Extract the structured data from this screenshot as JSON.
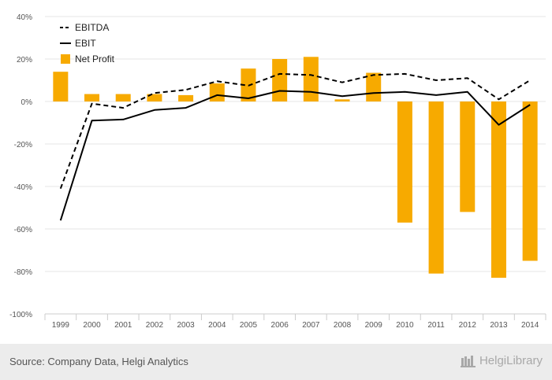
{
  "chart_data": {
    "type": "bar",
    "categories": [
      "1999",
      "2000",
      "2001",
      "2002",
      "2003",
      "2004",
      "2005",
      "2006",
      "2007",
      "2008",
      "2009",
      "2010",
      "2011",
      "2012",
      "2013",
      "2014"
    ],
    "series": [
      {
        "name": "EBITDA",
        "kind": "line-dashed",
        "color": "#000000",
        "values": [
          -41,
          -1,
          -3,
          4,
          5.5,
          9.5,
          7.5,
          13,
          12.5,
          9,
          12.5,
          13,
          10,
          11,
          1,
          10
        ]
      },
      {
        "name": "EBIT",
        "kind": "line",
        "color": "#000000",
        "values": [
          -56,
          -9,
          -8.5,
          -4,
          -3,
          3,
          1.5,
          5,
          4.5,
          2.5,
          4,
          4.5,
          3,
          4.5,
          -11,
          -1.5
        ]
      },
      {
        "name": "Net Profit",
        "kind": "bar",
        "color": "#f7aa00",
        "values": [
          14,
          3.5,
          3.5,
          3.5,
          3,
          8.5,
          15.5,
          20,
          21,
          1,
          13.5,
          -57,
          -81,
          -52,
          -83,
          -75
        ]
      }
    ],
    "y_ticks": [
      "40%",
      "20%",
      "0%",
      "-20%",
      "-40%",
      "-60%",
      "-80%",
      "-100%"
    ],
    "ylim": [
      -100,
      40
    ],
    "grid": true,
    "legend": "top-left"
  },
  "footer": {
    "source": "Source: Company Data, Helgi Analytics",
    "brand_name": "HelgiLibrary"
  }
}
